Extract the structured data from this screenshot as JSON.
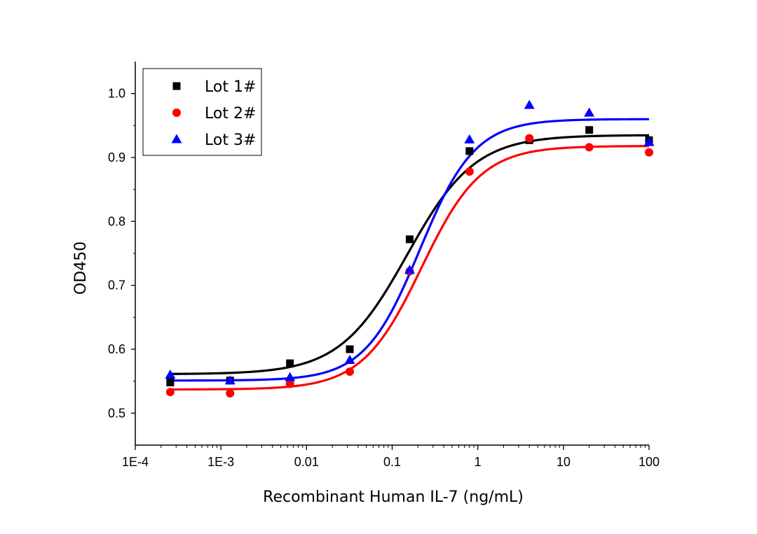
{
  "chart_data": {
    "type": "scatter",
    "title": "",
    "xlabel": "Recombinant Human IL-7 (ng/mL)",
    "ylabel": "OD450",
    "xscale": "log",
    "xlim": [
      0.0001,
      100
    ],
    "ylim": [
      0.45,
      1.05
    ],
    "xticks": [
      {
        "value": 0.0001,
        "label": "1E-4"
      },
      {
        "value": 0.001,
        "label": "1E-3"
      },
      {
        "value": 0.01,
        "label": "0.01"
      },
      {
        "value": 0.1,
        "label": "0.1"
      },
      {
        "value": 1,
        "label": "1"
      },
      {
        "value": 10,
        "label": "10"
      },
      {
        "value": 100,
        "label": "100"
      }
    ],
    "yticks": [
      {
        "value": 0.5,
        "label": "0.5"
      },
      {
        "value": 0.6,
        "label": "0.6"
      },
      {
        "value": 0.7,
        "label": "0.7"
      },
      {
        "value": 0.8,
        "label": "0.8"
      },
      {
        "value": 0.9,
        "label": "0.9"
      },
      {
        "value": 1.0,
        "label": "1.0"
      }
    ],
    "grid": false,
    "legend_position": "top-left",
    "x": [
      0.000256,
      0.00128,
      0.0064,
      0.032,
      0.16,
      0.8,
      4,
      20,
      100
    ],
    "series": [
      {
        "name": "Lot 1#",
        "color": "#000000",
        "marker": "square",
        "values": [
          0.548,
          0.551,
          0.578,
          0.6,
          0.772,
          0.91,
          0.927,
          0.943,
          0.927
        ],
        "fit": {
          "bottom": 0.561,
          "top": 0.935,
          "ec50": 0.15,
          "hill": 1.1
        }
      },
      {
        "name": "Lot 2#",
        "color": "#ff0000",
        "marker": "circle",
        "values": [
          0.533,
          0.531,
          0.546,
          0.565,
          0.722,
          0.878,
          0.93,
          0.916,
          0.908
        ],
        "fit": {
          "bottom": 0.537,
          "top": 0.918,
          "ec50": 0.22,
          "hill": 1.25
        }
      },
      {
        "name": "Lot 3#",
        "color": "#0000ff",
        "marker": "triangle",
        "values": [
          0.56,
          0.551,
          0.556,
          0.583,
          0.724,
          0.928,
          0.982,
          0.97,
          0.924
        ],
        "fit": {
          "bottom": 0.551,
          "top": 0.96,
          "ec50": 0.21,
          "hill": 1.35
        }
      }
    ]
  }
}
